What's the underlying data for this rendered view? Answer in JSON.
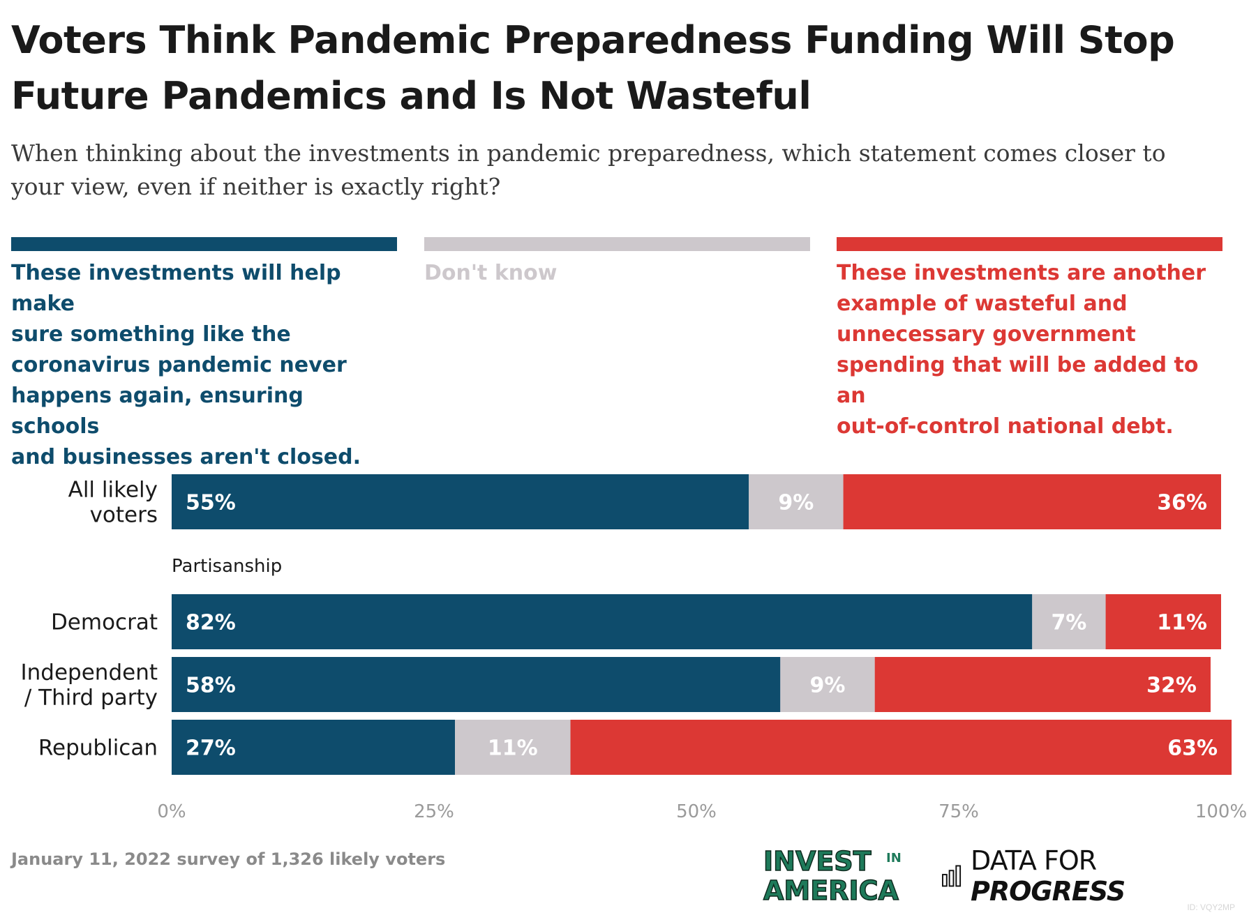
{
  "header": {
    "title_line1": "Voters Think Pandemic Preparedness Funding Will Stop",
    "title_line2": "Future Pandemics and Is Not Wasteful",
    "subtitle_line1": "When thinking about the investments in pandemic preparedness, which statement comes closer to",
    "subtitle_line2": "your view, even if neither is exactly right?"
  },
  "legend": {
    "help": {
      "lines": [
        "These investments will help make",
        "sure something like the",
        "coronavirus pandemic never",
        "happens again, ensuring schools",
        "and businesses aren't closed."
      ],
      "color": "#0e4c6c"
    },
    "dont_know": {
      "lines": [
        "Don't know"
      ],
      "color": "#cdc8cc"
    },
    "wasteful": {
      "lines": [
        "These investments are another",
        "example of wasteful and",
        "unnecessary government",
        "spending that will be added to an",
        "out-of-control national debt."
      ],
      "color": "#dc3834"
    }
  },
  "chart_data": {
    "type": "bar",
    "orientation": "horizontal",
    "stacked": true,
    "xlim": [
      0,
      100
    ],
    "x_ticks": [
      "0%",
      "25%",
      "50%",
      "75%",
      "100%"
    ],
    "section_label": "Partisanship",
    "categories": [
      [
        "All likely",
        "voters"
      ],
      [
        "Democrat"
      ],
      [
        "Independent",
        "/ Third party"
      ],
      [
        "Republican"
      ]
    ],
    "series": [
      {
        "name": "These investments will help make sure something like the coronavirus pandemic never happens again, ensuring schools and businesses aren't closed.",
        "values": [
          55,
          82,
          58,
          27
        ],
        "labels": [
          "55%",
          "82%",
          "58%",
          "27%"
        ],
        "color": "#0e4c6c"
      },
      {
        "name": "Don't know",
        "values": [
          9,
          7,
          9,
          11
        ],
        "labels": [
          "9%",
          "7%",
          "9%",
          "11%"
        ],
        "color": "#cdc8cc"
      },
      {
        "name": "These investments are another example of wasteful and unnecessary government spending that will be added to an out-of-control national debt.",
        "values": [
          36,
          11,
          32,
          63
        ],
        "labels": [
          "36%",
          "11%",
          "32%",
          "63%"
        ],
        "color": "#dc3834"
      }
    ]
  },
  "footer": {
    "note": "January 11, 2022 survey of 1,326 likely voters",
    "logo_invest": [
      "INVEST",
      "IN",
      "AMERICA"
    ],
    "logo_dfp_regular": "DATA FOR",
    "logo_dfp_bold": "PROGRESS",
    "chart_id": "ID: VQY2MP"
  }
}
